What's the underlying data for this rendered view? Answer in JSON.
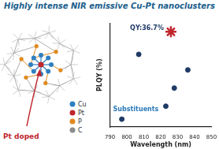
{
  "chart_data": {
    "type": "scatter",
    "title": "Highly intense NIR emissive Cu-Pt nanoclusters",
    "x_label": "Wavelength (nm)",
    "y_label": "PLQY (%)",
    "series": [
      {
        "color": "#1f3a66",
        "marker": "circle",
        "x": [
          797,
          807,
          823,
          828,
          836
        ],
        "values": [
          3,
          28,
          8,
          15,
          22
        ]
      },
      {
        "color": "#c0262d",
        "marker": "star",
        "x": [
          826
        ],
        "values": [
          36.7
        ]
      }
    ],
    "xlim": [
      790,
      850
    ],
    "xticks": [
      790,
      800,
      810,
      820,
      830,
      840,
      850
    ],
    "ylim": [
      0,
      40
    ],
    "tick_labels": "x",
    "grid": false,
    "annotations": [
      {
        "text": "QY:36.7%",
        "color": "#1f3a66"
      },
      {
        "text": "Substituents",
        "color": "#2a79b8"
      }
    ],
    "diagram": {
      "label": "Pt doped",
      "label_color": "#c0262d",
      "legend": [
        {
          "text": "Cu",
          "color": "#2f7fc1"
        },
        {
          "text": "Pt",
          "color": "#c0262d"
        },
        {
          "text": "P",
          "color": "#e08a1e"
        },
        {
          "text": "C",
          "color": "#8c8c8c"
        }
      ]
    }
  }
}
